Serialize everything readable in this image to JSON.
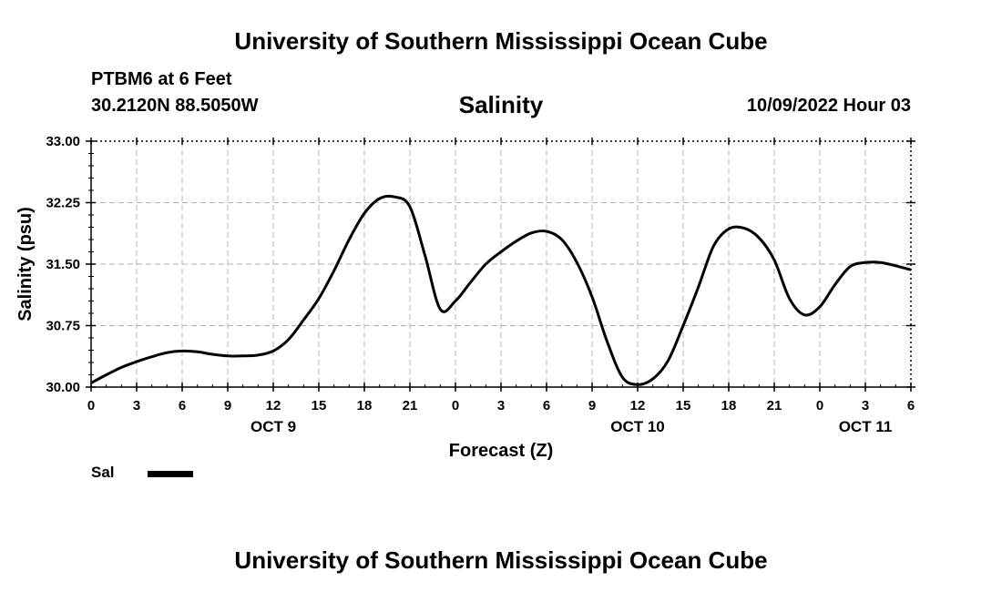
{
  "header": {
    "title_top": "University of Southern Mississippi Ocean Cube",
    "station": "PTBM6 at 6 Feet",
    "coords": "30.2120N  88.5050W",
    "timestamp": "10/09/2022 Hour 03",
    "title_bottom": "University of Southern Mississippi Ocean Cube"
  },
  "legend": {
    "label": "Sal",
    "color": "#000000"
  },
  "chart_data": {
    "type": "line",
    "title": "Salinity",
    "xlabel": "Forecast (Z)",
    "ylabel": "Salinity (psu)",
    "ylim": [
      30.0,
      33.0
    ],
    "xlim": [
      0,
      54
    ],
    "grid": true,
    "yticks": [
      "30.00",
      "30.75",
      "31.50",
      "32.25",
      "33.00"
    ],
    "xtick_labels": [
      "0",
      "3",
      "6",
      "9",
      "12",
      "15",
      "18",
      "21",
      "0",
      "3",
      "6",
      "9",
      "12",
      "15",
      "18",
      "21",
      "0",
      "3",
      "6"
    ],
    "day_labels": [
      {
        "label": "OCT 9",
        "hour": 12
      },
      {
        "label": "OCT 10",
        "hour": 36
      },
      {
        "label": "OCT 11",
        "hour": 51
      }
    ],
    "series": [
      {
        "name": "Sal",
        "x": [
          0,
          1,
          2,
          3,
          4,
          5,
          6,
          7,
          8,
          9,
          10,
          11,
          12,
          13,
          14,
          15,
          16,
          17,
          18,
          19,
          20,
          21,
          22,
          23,
          24,
          25,
          26,
          27,
          28,
          29,
          30,
          31,
          32,
          33,
          34,
          35,
          36,
          37,
          38,
          39,
          40,
          41,
          42,
          43,
          44,
          45,
          46,
          47,
          48,
          49,
          50,
          51,
          52,
          53,
          54
        ],
        "values": [
          30.05,
          30.15,
          30.24,
          30.31,
          30.37,
          30.42,
          30.44,
          30.43,
          30.4,
          30.38,
          30.38,
          30.39,
          30.44,
          30.58,
          30.82,
          31.08,
          31.42,
          31.8,
          32.12,
          32.3,
          32.32,
          32.2,
          31.6,
          30.95,
          31.05,
          31.28,
          31.5,
          31.65,
          31.78,
          31.88,
          31.9,
          31.8,
          31.52,
          31.1,
          30.55,
          30.12,
          30.03,
          30.1,
          30.32,
          30.75,
          31.22,
          31.72,
          31.93,
          31.94,
          31.82,
          31.55,
          31.08,
          30.88,
          30.98,
          31.25,
          31.47,
          31.52,
          31.52,
          31.48,
          31.43
        ]
      }
    ]
  }
}
